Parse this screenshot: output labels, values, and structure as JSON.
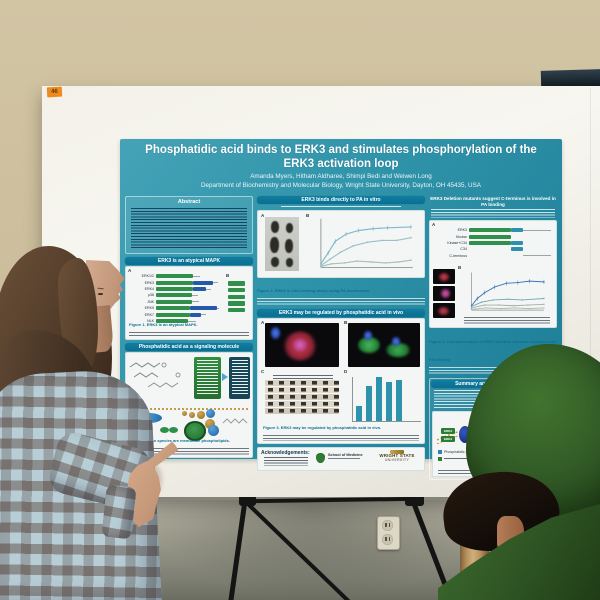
{
  "sticker": {
    "label": "46"
  },
  "palette": {
    "poster_teal": "#2f93a9",
    "header_teal": "#0d7396",
    "domain_green": "#2f8f4b",
    "domain_blue": "#2458a8",
    "bar_teal": "#2f92ac",
    "sweater_green": "#335c27",
    "wall_beige": "#cfc2a2"
  },
  "poster": {
    "title": "Phosphatidic acid binds to ERK3 and stimulates phosphorylation of the ERK3 activation loop",
    "authors": "Amanda Myers, Hitham Aldharee, Shimpi Bedi and Weiwen Long",
    "affiliation": "Department of Biochemistry and Molecular Biology, Wright State University, Dayton, OH 45435, USA",
    "sections": {
      "abstract": {
        "header": "Abstract"
      },
      "atypical": {
        "header": "ERK3 is an atypical MAPK",
        "caption_lead": "Figure 1. ERK3 is an atypical MAPK.",
        "panel_a_label": "A",
        "panel_b_label": "B",
        "rows": [
          {
            "label": "ERK1/2",
            "kinase": 56,
            "ext": 0,
            "tail": 10
          },
          {
            "label": "ERK3",
            "kinase": 56,
            "ext": 30,
            "tail": 8
          },
          {
            "label": "ERK4",
            "kinase": 56,
            "ext": 20,
            "tail": 8
          },
          {
            "label": "p38",
            "kinase": 54,
            "ext": 0,
            "tail": 10
          },
          {
            "label": "JNK",
            "kinase": 55,
            "ext": 0,
            "tail": 10
          },
          {
            "label": "ERK5",
            "kinase": 52,
            "ext": 40,
            "tail": 4
          },
          {
            "label": "ERK7",
            "kinase": 52,
            "ext": 16,
            "tail": 8
          },
          {
            "label": "NLK",
            "kinase": 48,
            "ext": 0,
            "tail": 12
          }
        ],
        "identity_chips": 5
      },
      "signaling": {
        "header": "Phosphatidic acid as a signaling molecule"
      },
      "binds": {
        "header": "ERK3 binds directly to PA in vitro",
        "caption_lead": "Figure 2. ERK3 in vitro binding assay using PA membranes.",
        "panel_a_label": "A",
        "panel_b_label": "B"
      },
      "invivo": {
        "header": "ERK3 may be regulated by phosphatidic acid in vivo",
        "caption_lead": "Figure 3. ERK3 may be regulated by phosphatidic acid in vivo.",
        "panel_labels": [
          "A",
          "B",
          "C",
          "D"
        ]
      },
      "deletion": {
        "header": "ERK3 Deletion mutants suggest C-terminus is involved in PA binding",
        "caption_lead": "Figure 4. Characterization of ERK3 deletion mutants evaluated with PA binding.",
        "rows": [
          {
            "label": "ERK3",
            "off": 0,
            "green": 50,
            "teal": 14,
            "tail": 34
          },
          {
            "label": "Kinase",
            "off": 0,
            "green": 50,
            "teal": 0,
            "tail": 0
          },
          {
            "label": "Kinase+C34",
            "off": 0,
            "green": 50,
            "teal": 14,
            "tail": 0
          },
          {
            "label": "C34",
            "off": 50,
            "green": 0,
            "teal": 14,
            "tail": 0
          },
          {
            "label": "C-terminus",
            "off": 64,
            "green": 0,
            "teal": 0,
            "tail": 34
          }
        ]
      },
      "summary": {
        "header": "Summary and Future Directions",
        "diagram_chip1": "ERK3",
        "diagram_chip2": "ERK3",
        "legend_item1": "Phosphatidic acid"
      },
      "acknowledgements": {
        "header": "Acknowledgements:",
        "logo_som": "School of Medicine",
        "logo_wsu_line1": "WRIGHT STATE",
        "logo_wsu_line2": "UNIVERSITY"
      }
    }
  },
  "charts": {
    "binds_lines": {
      "series": [
        {
          "color": "#7fb9cd",
          "err": 2.5,
          "points": [
            [
              0,
              50
            ],
            [
              8,
              38
            ],
            [
              16,
              25
            ],
            [
              28,
              17
            ],
            [
              42,
              13
            ],
            [
              58,
              11
            ],
            [
              74,
              10
            ],
            [
              100,
              9
            ]
          ]
        },
        {
          "color": "#9dc0c8",
          "err": 0,
          "points": [
            [
              0,
              52
            ],
            [
              10,
              45
            ],
            [
              22,
              37
            ],
            [
              36,
              30
            ],
            [
              52,
              26
            ],
            [
              68,
              24
            ],
            [
              84,
              24
            ],
            [
              100,
              21
            ]
          ]
        },
        {
          "color": "#aebdbd",
          "err": 0,
          "points": [
            [
              0,
              53
            ],
            [
              12,
              50
            ],
            [
              26,
              49
            ],
            [
              40,
              47
            ],
            [
              56,
              48
            ],
            [
              72,
              49
            ],
            [
              86,
              48
            ],
            [
              100,
              46
            ]
          ]
        }
      ]
    },
    "deletion_lines": {
      "series": [
        {
          "color": "#3d74b8",
          "err": 3,
          "points": [
            [
              0,
              46
            ],
            [
              8,
              36
            ],
            [
              18,
              28
            ],
            [
              32,
              20
            ],
            [
              48,
              15
            ],
            [
              64,
              14
            ],
            [
              80,
              12
            ],
            [
              100,
              13
            ]
          ]
        },
        {
          "color": "#7aa9b5",
          "err": 0,
          "points": [
            [
              0,
              47
            ],
            [
              14,
              41
            ],
            [
              30,
              38
            ],
            [
              50,
              37
            ],
            [
              70,
              38
            ],
            [
              100,
              36
            ]
          ]
        },
        {
          "color": "#9fb0a8",
          "err": 0,
          "points": [
            [
              0,
              49
            ],
            [
              18,
              45
            ],
            [
              38,
              45
            ],
            [
              58,
              46
            ],
            [
              78,
              45
            ],
            [
              100,
              44
            ]
          ]
        },
        {
          "color": "#b7b7ae",
          "err": 0,
          "points": [
            [
              0,
              51
            ],
            [
              20,
              49
            ],
            [
              40,
              50
            ],
            [
              60,
              49
            ],
            [
              80,
              50
            ],
            [
              100,
              49
            ]
          ]
        }
      ]
    },
    "invivo_bars": {
      "values": [
        0.32,
        0.78,
        1.0,
        0.88,
        0.93
      ],
      "color": "#2f92ac"
    }
  }
}
